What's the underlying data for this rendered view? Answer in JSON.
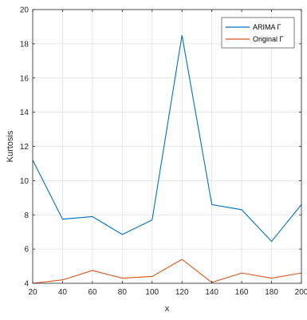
{
  "chart_data": {
    "type": "line",
    "title": "",
    "xlabel": "x",
    "ylabel": "Kurtosis",
    "xlim": [
      20,
      200
    ],
    "ylim": [
      4,
      20
    ],
    "xticks": [
      20,
      40,
      60,
      80,
      100,
      120,
      140,
      160,
      180,
      200
    ],
    "yticks": [
      4,
      6,
      8,
      10,
      12,
      14,
      16,
      18,
      20
    ],
    "grid": true,
    "legend_position": "top-right",
    "x": [
      20,
      40,
      60,
      80,
      100,
      120,
      140,
      160,
      180,
      200
    ],
    "series": [
      {
        "name": "ARIMA Γ",
        "color": "#0072BD",
        "values": [
          11.2,
          7.75,
          7.9,
          6.85,
          7.7,
          18.5,
          8.6,
          8.3,
          6.45,
          8.6
        ]
      },
      {
        "name": "Original Γ",
        "color": "#D95319",
        "values": [
          4.0,
          4.2,
          4.75,
          4.3,
          4.4,
          5.4,
          4.05,
          4.6,
          4.3,
          4.6
        ]
      }
    ]
  }
}
